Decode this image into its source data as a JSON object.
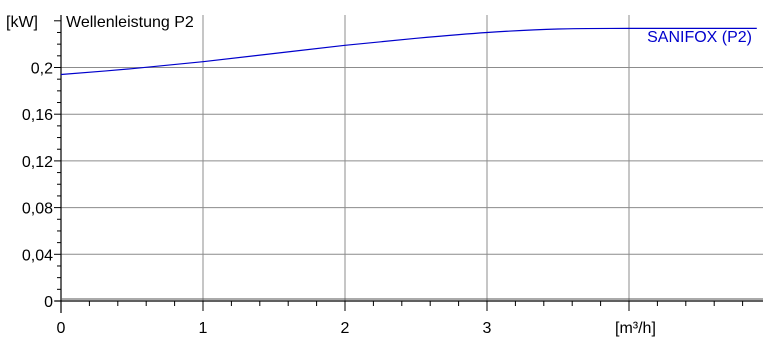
{
  "chart_data": {
    "type": "line",
    "title": "Wellenleistung P2",
    "ylabel": "[kW]",
    "xlabel": "[m³/h]",
    "xlim": [
      0,
      4.9
    ],
    "ylim": [
      0,
      0.24
    ],
    "x_ticks": [
      0,
      1,
      2,
      3
    ],
    "x_tick_labels": [
      "0",
      "1",
      "2",
      "3"
    ],
    "y_ticks": [
      0,
      0.04,
      0.08,
      0.12,
      0.16,
      0.2
    ],
    "y_tick_labels": [
      "0",
      "0,04",
      "0,08",
      "0,12",
      "0,16",
      "0,2"
    ],
    "grid": true,
    "series": [
      {
        "name": "SANIFOX (P2)",
        "color": "#0000cc",
        "x": [
          0,
          0.5,
          1,
          1.5,
          2,
          2.5,
          3,
          3.5,
          4,
          4.5,
          4.9
        ],
        "y": [
          0.194,
          0.199,
          0.205,
          0.212,
          0.219,
          0.225,
          0.23,
          0.233,
          0.2335,
          0.2335,
          0.2335
        ]
      }
    ]
  }
}
